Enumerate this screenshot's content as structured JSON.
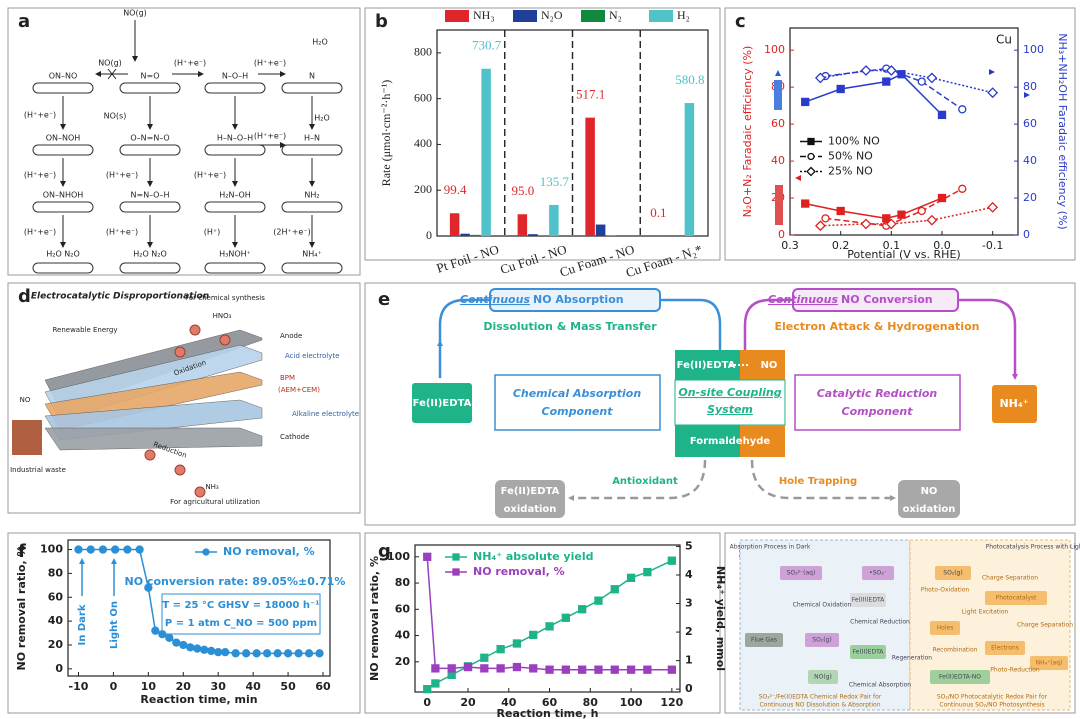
{
  "chart_data": [
    {
      "panel": "b",
      "type": "bar",
      "categories": [
        "Pt Foil - NO",
        "Cu Foil - NO",
        "Cu Foam - NO",
        "Cu Foam - N₂*"
      ],
      "series": [
        {
          "name": "NH₃",
          "color": "#e0262b",
          "values": [
            99.4,
            95.0,
            517.1,
            0.1
          ],
          "value_labels": [
            "99.4",
            "95.0",
            "517.1",
            "0.1"
          ]
        },
        {
          "name": "N₂O",
          "color": "#1f3f99",
          "values": [
            10,
            8,
            50,
            0
          ]
        },
        {
          "name": "N₂",
          "color": "#0f8a3c",
          "values": [
            5,
            3,
            2,
            0
          ]
        },
        {
          "name": "H₂",
          "color": "#4fc3c9",
          "values": [
            730.7,
            135.7,
            0,
            580.8
          ],
          "value_labels": [
            "730.7",
            "135.7",
            null,
            "580.8"
          ]
        }
      ],
      "y_label": "Rate (μmol·cm⁻²·h⁻¹)",
      "ylim": [
        0,
        900
      ],
      "yticks": [
        0,
        200,
        400,
        600,
        800
      ],
      "legend": "top"
    },
    {
      "panel": "c",
      "type": "line",
      "annotations": [
        "Cu"
      ],
      "x_label": "Potential (V vs. RHE)",
      "y_label": "N₂O+N₂ Faradaic efficiency (%)",
      "y2_label": "NH₃+NH₂OH Faradaic efficiency (%)",
      "ycolor": "#e02020",
      "y2color": "#2a3bcc",
      "legend": "center-left",
      "legend_color": "#111",
      "xlim": [
        0.3,
        -0.15
      ],
      "xticks": [
        0.3,
        0.2,
        0.1,
        {
          "value": 0,
          "label": "0.0"
        },
        -0.1
      ],
      "ylim": [
        0,
        112
      ],
      "yticks": [
        0,
        20,
        40,
        60,
        80,
        100
      ],
      "y2lim": [
        0,
        112
      ],
      "y2ticks": [
        0,
        20,
        40,
        60,
        80,
        100
      ],
      "series": [
        {
          "name": "100% NO",
          "color": "#2a3bcc",
          "axis": "y2",
          "marker": "square",
          "dash": "solid",
          "x": [
            0.27,
            0.2,
            0.11,
            0.08,
            0.0
          ],
          "values": [
            72,
            79,
            83,
            87,
            65
          ]
        },
        {
          "name": "50% NO",
          "color": "#2a3bcc",
          "axis": "y2",
          "marker": "circle",
          "open": true,
          "dash": "dashed",
          "x": [
            0.23,
            0.11,
            0.04,
            -0.04
          ],
          "values": [
            86,
            90,
            83,
            68
          ]
        },
        {
          "name": "25% NO",
          "color": "#2a3bcc",
          "axis": "y2",
          "marker": "diamond",
          "open": true,
          "dash": "dotted",
          "x": [
            0.24,
            0.15,
            0.1,
            0.02,
            -0.1
          ],
          "values": [
            85,
            89,
            89,
            85,
            77
          ]
        },
        {
          "name": "100% NO",
          "color": "#e02020",
          "marker": "square",
          "dash": "solid",
          "x": [
            0.27,
            0.2,
            0.11,
            0.08,
            0.0
          ],
          "values": [
            17,
            13,
            9,
            11,
            20
          ]
        },
        {
          "name": "50% NO",
          "color": "#e02020",
          "marker": "circle",
          "open": true,
          "dash": "dashed",
          "x": [
            0.23,
            0.11,
            0.04,
            -0.04
          ],
          "values": [
            9,
            5,
            13,
            25
          ]
        },
        {
          "name": "25% NO",
          "color": "#e02020",
          "marker": "diamond",
          "open": true,
          "dash": "dotted",
          "x": [
            0.24,
            0.15,
            0.1,
            0.02,
            -0.1
          ],
          "values": [
            5,
            6,
            6,
            8,
            15
          ]
        }
      ]
    },
    {
      "panel": "f",
      "type": "line",
      "x_label": "Reaction time, min",
      "y_label": "NO removal ratio, %",
      "legend": "upper-right",
      "annotations": [
        "NO conversion rate: 89.05%±0.71%",
        "T = 25 °C   GHSV = 18000 h⁻¹",
        "P = 1 atm   C_NO = 500 ppm",
        "In Dark",
        "Light On"
      ],
      "xlim": [
        -13,
        62
      ],
      "xticks": [
        -10,
        0,
        10,
        20,
        30,
        40,
        50,
        60
      ],
      "ylim": [
        -6,
        108
      ],
      "yticks": [
        0,
        20,
        40,
        60,
        80,
        100
      ],
      "series": [
        {
          "name": "NO removal, %",
          "color": "#2b8fd6",
          "marker": "circle",
          "dash": "solid",
          "x": [
            -10,
            -6.5,
            -3,
            0.5,
            4,
            7.5,
            10,
            12,
            14,
            16,
            18,
            20,
            22,
            24,
            26,
            28,
            30,
            32,
            35,
            38,
            41,
            44,
            47,
            50,
            53,
            56,
            59
          ],
          "values": [
            100,
            100,
            100,
            100,
            100,
            100,
            68,
            32,
            29,
            26,
            22,
            20,
            18,
            17,
            16,
            15,
            14,
            14,
            13,
            13,
            13,
            13,
            13,
            13,
            13,
            13,
            13
          ]
        }
      ]
    },
    {
      "panel": "g",
      "type": "line",
      "x_label": "Reaction time, h",
      "y_label": "NO removal ratio, %",
      "y2_label": "NH₄⁺ yield, mmol",
      "legend": "upper-left",
      "xlim": [
        -6,
        124
      ],
      "xticks": [
        0,
        20,
        40,
        60,
        80,
        100,
        120
      ],
      "ylim": [
        -3,
        109
      ],
      "yticks": [
        20,
        40,
        60,
        80,
        100
      ],
      "y2lim": [
        -0.1,
        5.05
      ],
      "y2ticks": [
        0,
        1,
        2,
        3,
        4,
        5
      ],
      "series": [
        {
          "name": "NH₄⁺ absolute yield",
          "color": "#1fb38a",
          "axis": "y2",
          "marker": "square",
          "dash": "solid",
          "x": [
            0,
            4,
            12,
            20,
            28,
            36,
            44,
            52,
            60,
            68,
            76,
            84,
            92,
            100,
            108,
            120
          ],
          "values": [
            0,
            0.2,
            0.5,
            0.8,
            1.1,
            1.4,
            1.6,
            1.9,
            2.2,
            2.5,
            2.8,
            3.1,
            3.5,
            3.9,
            4.1,
            4.5
          ]
        },
        {
          "name": "NO removal, %",
          "color": "#9b3fbf",
          "marker": "square",
          "dash": "solid",
          "x": [
            0,
            4,
            12,
            20,
            28,
            36,
            44,
            52,
            60,
            68,
            76,
            84,
            92,
            100,
            108,
            120
          ],
          "values": [
            100,
            15,
            15,
            16,
            15,
            15,
            16,
            15,
            14,
            14,
            14,
            14,
            14,
            14,
            14,
            14
          ]
        }
      ]
    }
  ],
  "diagram_a": {
    "panel": "a",
    "texts": [
      "NO(g)",
      "NO(g)",
      "(H⁺+e⁻)",
      "NO(s)",
      "(H⁺+e⁻)",
      "(H⁺+e⁻)",
      "H₂O",
      "(H⁺+e⁻)",
      "(H⁺+e⁻)",
      "(H⁺+e⁻)",
      "(H⁺+e⁻)",
      "H₂O",
      "(H⁺+e⁻)",
      "(H⁺+e⁻)",
      "(H⁺)",
      "(2H⁺+e⁻)",
      "H₂O  N₂O",
      "H₂O  N₂O",
      "H₃NOH⁺",
      "NH₄⁺",
      "ON–NO",
      "ON–NOH",
      "ON–NHOH",
      "N=O",
      "O–N=N–O",
      "N=N–O–H",
      "N–O–H",
      "H–N–O–H",
      "H₂N–OH",
      "N",
      "H–N",
      "NH₂"
    ]
  },
  "diagram_d": {
    "panel": "d",
    "texts": [
      "Electrocatalytic Disproportionation",
      "Renewable Energy",
      "For chemical synthesis",
      "HNO₃",
      "Anode",
      "Acid electrolyte",
      "BPM",
      "(AEM+CEM)",
      "Alkaline electrolyte",
      "Cathode",
      "NO",
      "Industrial waste",
      "Oxidation",
      "Reduction",
      "NH₃",
      "For agricultural utilization"
    ]
  },
  "diagram_e": {
    "panel": "e",
    "texts": [
      "Continuous",
      "NO Absorption",
      "Dissolution & Mass Transfer",
      "Continuous",
      "NO Conversion",
      "Electron Attack & Hydrogenation",
      "Fe(II)EDTA",
      "Chemical Absorption",
      "Component",
      "Fe(II)EDTA",
      "NO",
      "On-site Coupling",
      "System",
      "Formaldehyde",
      "Catalytic Reduction",
      "Component",
      "NH₄⁺",
      "Antioxidant",
      "Hole Trapping",
      "Fe(II)EDTA",
      "oxidation",
      "NO",
      "oxidation"
    ]
  },
  "diagram_h": {
    "panel": "h",
    "texts": [
      "Absorption Process in Dark",
      "Photocatalysis Process with Light on",
      "SO₃²⁻(aq)",
      "•SO₃⁻",
      "SO₂(g)",
      "Chemical Oxidation",
      "Fe(III)EDTA",
      "SO₂(g)",
      "Chemical Reduction",
      "Flue Gas",
      "Fe(II)EDTA",
      "NO(g)",
      "Chemical Absorption",
      "Fe(II)EDTA-NO",
      "Photo-Oxidation",
      "Charge Separation",
      "Holes",
      "Photocatalyst",
      "Light Excitation",
      "Recombination",
      "Electrons",
      "Charge Separation",
      "Photo-Reduction",
      "NH₄⁺(aq)",
      "Regeneration",
      "SO₃²⁻/Fe(II)EDTA Chemical Redox Pair for",
      "Continuous NO Dissolution & Absorption",
      "SO₂/NO Photocatalytic Redox Pair for",
      "Continuous SO₂/NO Photosynthesis"
    ]
  }
}
